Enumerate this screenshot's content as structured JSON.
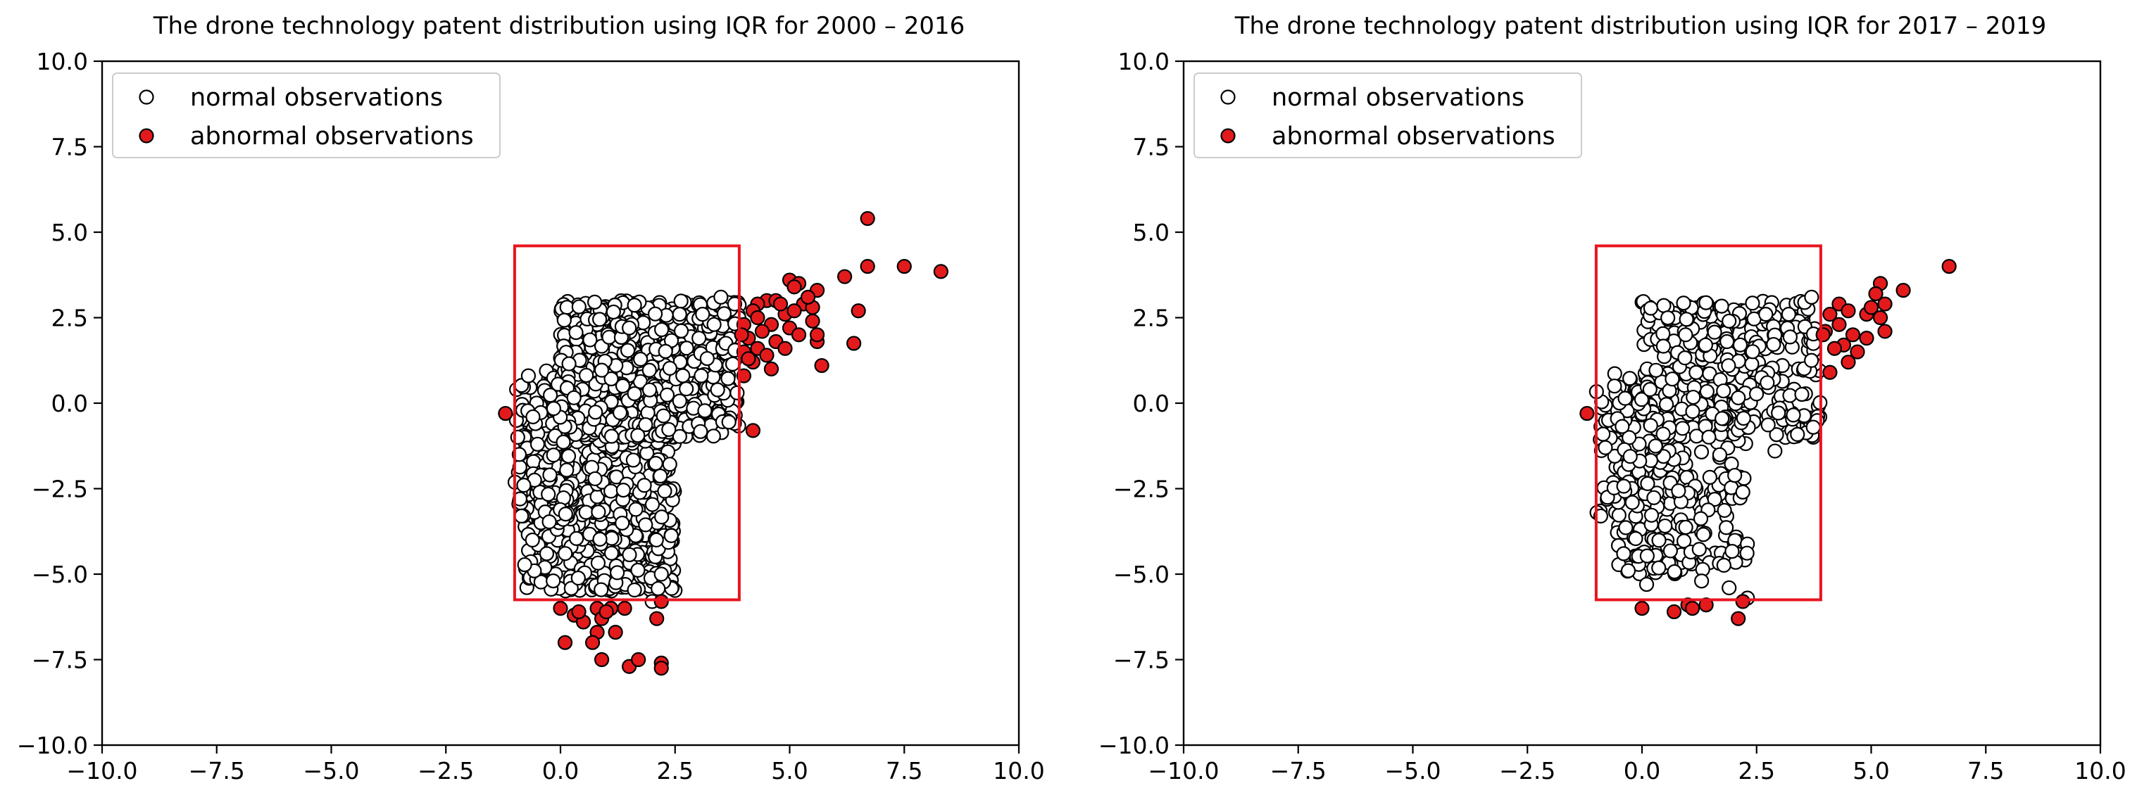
{
  "colors": {
    "normal_fill": "#ffffff",
    "abnormal_fill": "#e31a1c",
    "marker_edge": "#000000",
    "iqr_box": "#e8141e",
    "axes": "#000000",
    "legend_border": "#cccccc"
  },
  "chart_data": [
    {
      "type": "scatter",
      "title": "The drone technology patent distribution using IQR for 2000 – 2016",
      "xlim": [
        -10,
        10
      ],
      "ylim": [
        -10,
        10
      ],
      "xticks": [
        "−10.0",
        "−7.5",
        "−5.0",
        "−2.5",
        "0.0",
        "2.5",
        "5.0",
        "7.5",
        "10.0"
      ],
      "yticks": [
        "−10.0",
        "−7.5",
        "−5.0",
        "−2.5",
        "0.0",
        "2.5",
        "5.0",
        "7.5",
        "10.0"
      ],
      "xlabel": "",
      "ylabel": "",
      "grid": false,
      "legend": {
        "position": "top-left",
        "entries": [
          "normal observations",
          "abnormal observations"
        ]
      },
      "iqr_box": {
        "x0": -1.0,
        "x1": 3.9,
        "y0": -5.75,
        "y1": 4.6
      },
      "normal_density": {
        "count": 1500,
        "regions": [
          {
            "xmin": -0.8,
            "xmax": 2.5,
            "ymin": -5.5,
            "ymax": 1.0,
            "share": 0.48
          },
          {
            "xmin": 0.0,
            "xmax": 3.9,
            "ymin": -1.0,
            "ymax": 3.0,
            "share": 0.45
          },
          {
            "xmin": -1.0,
            "xmax": 0.3,
            "ymin": -3.5,
            "ymax": 0.8,
            "share": 0.07
          }
        ]
      },
      "series": [
        {
          "name": "normal observations",
          "points": [
            [
              -0.7,
              0.8
            ],
            [
              -0.9,
              -1.5
            ],
            [
              -0.85,
              -3.3
            ],
            [
              -0.8,
              -2.4
            ],
            [
              -0.3,
              -4.4
            ],
            [
              -0.5,
              -1.2
            ],
            [
              -0.6,
              -0.4
            ],
            [
              2.2,
              -5.0
            ],
            [
              2.0,
              -5.8
            ],
            [
              1.5,
              2.2
            ],
            [
              3.5,
              3.1
            ],
            [
              3.8,
              2.9
            ],
            [
              3.1,
              2.6
            ],
            [
              2.6,
              2.6
            ]
          ]
        },
        {
          "name": "abnormal observations",
          "points": [
            [
              -1.2,
              -0.3
            ],
            [
              6.7,
              5.4
            ],
            [
              6.7,
              4.0
            ],
            [
              7.5,
              4.0
            ],
            [
              8.3,
              3.85
            ],
            [
              6.2,
              3.7
            ],
            [
              6.5,
              2.7
            ],
            [
              6.4,
              1.75
            ],
            [
              5.6,
              1.8
            ],
            [
              5.7,
              1.1
            ],
            [
              5.6,
              2.0
            ],
            [
              4.2,
              -0.8
            ],
            [
              5.0,
              3.6
            ],
            [
              5.2,
              3.5
            ],
            [
              5.1,
              3.4
            ],
            [
              5.6,
              3.3
            ],
            [
              4.5,
              3.0
            ],
            [
              5.3,
              2.9
            ],
            [
              4.3,
              2.9
            ],
            [
              4.7,
              3.0
            ],
            [
              5.5,
              2.8
            ],
            [
              4.9,
              2.6
            ],
            [
              4.2,
              2.7
            ],
            [
              5.5,
              2.4
            ],
            [
              4.0,
              2.3
            ],
            [
              4.6,
              2.3
            ],
            [
              5.0,
              2.2
            ],
            [
              4.4,
              2.1
            ],
            [
              5.2,
              2.0
            ],
            [
              4.1,
              1.9
            ],
            [
              4.7,
              1.8
            ],
            [
              4.3,
              1.6
            ],
            [
              4.9,
              1.6
            ],
            [
              4.0,
              1.5
            ],
            [
              4.5,
              1.4
            ],
            [
              4.2,
              1.2
            ],
            [
              4.6,
              1.0
            ],
            [
              4.0,
              0.8
            ],
            [
              4.8,
              2.9
            ],
            [
              5.1,
              2.7
            ],
            [
              4.3,
              2.5
            ],
            [
              5.4,
              3.1
            ],
            [
              3.95,
              2.0
            ],
            [
              4.1,
              1.3
            ],
            [
              0.0,
              -6.0
            ],
            [
              0.3,
              -6.2
            ],
            [
              0.8,
              -6.0
            ],
            [
              1.1,
              -6.0
            ],
            [
              1.4,
              -6.0
            ],
            [
              2.2,
              -5.8
            ],
            [
              0.5,
              -6.4
            ],
            [
              0.9,
              -6.3
            ],
            [
              0.1,
              -7.0
            ],
            [
              0.8,
              -6.7
            ],
            [
              0.7,
              -7.0
            ],
            [
              1.2,
              -6.7
            ],
            [
              0.9,
              -7.5
            ],
            [
              1.5,
              -7.7
            ],
            [
              1.7,
              -7.5
            ],
            [
              2.2,
              -7.6
            ],
            [
              2.2,
              -7.75
            ],
            [
              2.1,
              -6.3
            ],
            [
              0.4,
              -6.1
            ],
            [
              1.0,
              -6.1
            ]
          ]
        }
      ]
    },
    {
      "type": "scatter",
      "title": "The drone technology patent distribution using IQR for 2017 – 2019",
      "xlim": [
        -10,
        10
      ],
      "ylim": [
        -10,
        10
      ],
      "xticks": [
        "−10.0",
        "−7.5",
        "−5.0",
        "−2.5",
        "0.0",
        "2.5",
        "5.0",
        "7.5",
        "10.0"
      ],
      "yticks": [
        "−10.0",
        "−7.5",
        "−5.0",
        "−2.5",
        "0.0",
        "2.5",
        "5.0",
        "7.5",
        "10.0"
      ],
      "xlabel": "",
      "ylabel": "",
      "grid": false,
      "legend": {
        "position": "top-left",
        "entries": [
          "normal observations",
          "abnormal observations"
        ]
      },
      "iqr_box": {
        "x0": -1.0,
        "x1": 3.9,
        "y0": -5.75,
        "y1": 4.6
      },
      "normal_density": {
        "count": 700,
        "regions": [
          {
            "xmin": -0.6,
            "xmax": 2.3,
            "ymin": -5.0,
            "ymax": 1.0,
            "share": 0.45
          },
          {
            "xmin": 0.0,
            "xmax": 3.9,
            "ymin": -1.0,
            "ymax": 3.0,
            "share": 0.47
          },
          {
            "xmin": -1.0,
            "xmax": 0.3,
            "ymin": -3.3,
            "ymax": 0.5,
            "share": 0.08
          }
        ]
      },
      "series": [
        {
          "name": "normal observations",
          "points": [
            [
              -0.8,
              -1.3
            ],
            [
              -0.9,
              -3.3
            ],
            [
              -0.4,
              -4.4
            ],
            [
              -0.3,
              -4.9
            ],
            [
              0.1,
              -5.3
            ],
            [
              1.3,
              -5.2
            ],
            [
              1.9,
              -5.4
            ],
            [
              2.3,
              -5.7
            ],
            [
              2.9,
              -1.4
            ],
            [
              2.2,
              -2.6
            ],
            [
              3.7,
              3.1
            ],
            [
              3.2,
              2.6
            ],
            [
              2.7,
              2.6
            ],
            [
              1.9,
              2.4
            ],
            [
              -0.6,
              0.5
            ]
          ]
        },
        {
          "name": "abnormal observations",
          "points": [
            [
              -1.2,
              -0.3
            ],
            [
              6.7,
              4.0
            ],
            [
              5.7,
              3.3
            ],
            [
              5.2,
              3.5
            ],
            [
              5.1,
              3.2
            ],
            [
              5.3,
              2.9
            ],
            [
              4.3,
              2.9
            ],
            [
              4.9,
              2.6
            ],
            [
              4.5,
              2.7
            ],
            [
              5.2,
              2.5
            ],
            [
              5.3,
              2.1
            ],
            [
              4.1,
              2.6
            ],
            [
              4.3,
              2.3
            ],
            [
              4.0,
              2.1
            ],
            [
              4.6,
              2.0
            ],
            [
              4.9,
              1.9
            ],
            [
              4.4,
              1.7
            ],
            [
              4.7,
              1.5
            ],
            [
              4.2,
              1.6
            ],
            [
              4.1,
              0.9
            ],
            [
              4.5,
              1.2
            ],
            [
              5.0,
              2.8
            ],
            [
              3.95,
              2.0
            ],
            [
              0.0,
              -6.0
            ],
            [
              0.7,
              -6.1
            ],
            [
              1.0,
              -5.9
            ],
            [
              1.4,
              -5.9
            ],
            [
              2.2,
              -5.8
            ],
            [
              2.1,
              -6.3
            ],
            [
              1.1,
              -6.0
            ]
          ]
        }
      ]
    }
  ]
}
